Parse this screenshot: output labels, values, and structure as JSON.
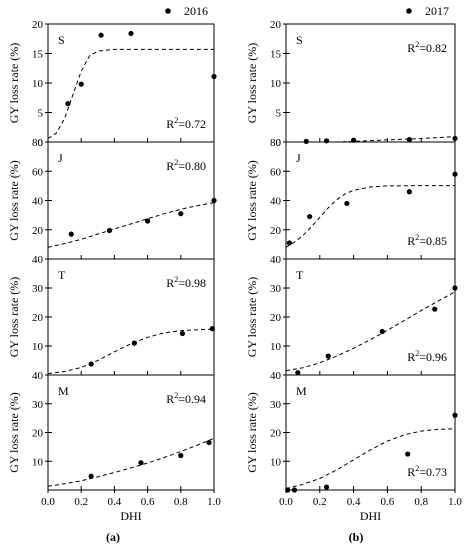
{
  "figure": {
    "left_label": "(a)",
    "right_label": "(b)"
  },
  "chart_data": [
    {
      "type": "scatter",
      "column": "a",
      "year": "2016",
      "xlabel": "DHI",
      "xticks": [
        "0.0",
        "0.2",
        "0.4",
        "0.6",
        "0.8",
        "1.0"
      ],
      "xlim": [
        0,
        1
      ],
      "panels": [
        {
          "letter": "S",
          "ylabel": "GY loss rate (%)",
          "ylim": [
            0,
            20
          ],
          "yticks": [
            0,
            5,
            10,
            15,
            20
          ],
          "r2_prefix": "R",
          "r2_value": "=0.72",
          "r2_pos": "bottom-right",
          "points": [
            [
              0.12,
              6.5
            ],
            [
              0.2,
              9.8
            ],
            [
              0.32,
              18.1
            ],
            [
              0.5,
              18.4
            ],
            [
              1.0,
              11.1
            ]
          ],
          "curve": [
            [
              0.0,
              0.6
            ],
            [
              0.05,
              1.5
            ],
            [
              0.1,
              4.0
            ],
            [
              0.15,
              8.0
            ],
            [
              0.2,
              12.0
            ],
            [
              0.25,
              14.6
            ],
            [
              0.3,
              15.4
            ],
            [
              0.4,
              15.7
            ],
            [
              0.6,
              15.7
            ],
            [
              0.8,
              15.7
            ],
            [
              1.0,
              15.7
            ]
          ]
        },
        {
          "letter": "J",
          "ylabel": "GY loss rate (%)",
          "ylim": [
            0,
            80
          ],
          "yticks": [
            20,
            40,
            60,
            80
          ],
          "r2_prefix": "R",
          "r2_value": "=0.80",
          "r2_pos": "top-right",
          "points": [
            [
              0.14,
              17
            ],
            [
              0.37,
              19.5
            ],
            [
              0.6,
              26
            ],
            [
              0.8,
              31
            ],
            [
              1.0,
              40
            ]
          ],
          "curve": [
            [
              0.0,
              8
            ],
            [
              0.1,
              10.5
            ],
            [
              0.2,
              13.5
            ],
            [
              0.3,
              17
            ],
            [
              0.4,
              20.5
            ],
            [
              0.5,
              24
            ],
            [
              0.6,
              27.5
            ],
            [
              0.7,
              31
            ],
            [
              0.8,
              34
            ],
            [
              0.9,
              36.5
            ],
            [
              1.0,
              38.5
            ]
          ]
        },
        {
          "letter": "T",
          "ylabel": "GY loss rate (%)",
          "ylim": [
            0,
            40
          ],
          "yticks": [
            10,
            20,
            30,
            40
          ],
          "r2_prefix": "R",
          "r2_value": "=0.98",
          "r2_pos": "top-right",
          "points": [
            [
              0.26,
              3.8
            ],
            [
              0.52,
              11
            ],
            [
              0.81,
              14.3
            ],
            [
              0.99,
              16
            ]
          ],
          "curve": [
            [
              0.0,
              0.5
            ],
            [
              0.1,
              1.2
            ],
            [
              0.2,
              2.6
            ],
            [
              0.3,
              5
            ],
            [
              0.4,
              8
            ],
            [
              0.5,
              10.8
            ],
            [
              0.6,
              13
            ],
            [
              0.7,
              14.5
            ],
            [
              0.8,
              15.3
            ],
            [
              0.9,
              15.6
            ],
            [
              1.0,
              15.8
            ]
          ]
        },
        {
          "letter": "M",
          "ylabel": "GY loss rate (%)",
          "ylim": [
            0,
            40
          ],
          "yticks": [
            10,
            20,
            30,
            40
          ],
          "r2_prefix": "R",
          "r2_value": "=0.94",
          "r2_pos": "top-right",
          "points": [
            [
              0.26,
              4.8
            ],
            [
              0.56,
              9.5
            ],
            [
              0.8,
              12
            ],
            [
              0.97,
              16.5
            ]
          ],
          "curve": [
            [
              0.0,
              1.3
            ],
            [
              0.1,
              2.2
            ],
            [
              0.2,
              3.2
            ],
            [
              0.3,
              4.6
            ],
            [
              0.4,
              6.1
            ],
            [
              0.5,
              7.7
            ],
            [
              0.6,
              9.4
            ],
            [
              0.7,
              11.3
            ],
            [
              0.8,
              13.4
            ],
            [
              0.9,
              15.6
            ],
            [
              1.0,
              18
            ]
          ]
        }
      ]
    },
    {
      "type": "scatter",
      "column": "b",
      "year": "2017",
      "xlabel": "DHI",
      "xticks": [
        "0.0",
        "0.2",
        "0.4",
        "0.6",
        "0.8",
        "1.0"
      ],
      "xlim": [
        0,
        1
      ],
      "panels": [
        {
          "letter": "S",
          "ylabel": "GY loss rate (%)",
          "ylim": [
            0,
            20
          ],
          "yticks": [
            0,
            5,
            10,
            15,
            20
          ],
          "r2_prefix": "R",
          "r2_value": "=0.82",
          "r2_pos": "top-right",
          "points": [
            [
              0.12,
              0.1
            ],
            [
              0.24,
              0.2
            ],
            [
              0.4,
              0.3
            ],
            [
              0.73,
              0.4
            ],
            [
              1.0,
              0.6
            ]
          ],
          "curve": [
            [
              0.0,
              -0.4
            ],
            [
              0.2,
              -0.1
            ],
            [
              0.4,
              0.1
            ],
            [
              0.6,
              0.35
            ],
            [
              0.8,
              0.6
            ],
            [
              1.0,
              0.9
            ]
          ]
        },
        {
          "letter": "J",
          "ylabel": "GY loss rate (%)",
          "ylim": [
            0,
            80
          ],
          "yticks": [
            20,
            40,
            60,
            80
          ],
          "r2_prefix": "R",
          "r2_value": "=0.85",
          "r2_pos": "bottom-right",
          "points": [
            [
              0.02,
              11
            ],
            [
              0.14,
              29
            ],
            [
              0.36,
              38
            ],
            [
              0.73,
              46
            ],
            [
              1.0,
              58
            ]
          ],
          "curve": [
            [
              0.0,
              8
            ],
            [
              0.05,
              11.5
            ],
            [
              0.1,
              16
            ],
            [
              0.15,
              22
            ],
            [
              0.2,
              28.5
            ],
            [
              0.25,
              35
            ],
            [
              0.3,
              40.5
            ],
            [
              0.35,
              44.5
            ],
            [
              0.4,
              47
            ],
            [
              0.5,
              49.3
            ],
            [
              0.6,
              50
            ],
            [
              0.8,
              50.2
            ],
            [
              1.0,
              50.2
            ]
          ]
        },
        {
          "letter": "T",
          "ylabel": "GY loss rate (%)",
          "ylim": [
            0,
            40
          ],
          "yticks": [
            10,
            20,
            30,
            40
          ],
          "r2_prefix": "R",
          "r2_value": "=0.96",
          "r2_pos": "bottom-right",
          "points": [
            [
              0.07,
              0.8
            ],
            [
              0.25,
              6.5
            ],
            [
              0.57,
              15
            ],
            [
              0.88,
              22.7
            ],
            [
              1.0,
              30
            ]
          ],
          "curve": [
            [
              0.0,
              1.5
            ],
            [
              0.1,
              2.5
            ],
            [
              0.2,
              4.2
            ],
            [
              0.3,
              6.5
            ],
            [
              0.4,
              9.2
            ],
            [
              0.5,
              12.2
            ],
            [
              0.6,
              15.4
            ],
            [
              0.7,
              18.8
            ],
            [
              0.8,
              22.2
            ],
            [
              0.9,
              25.5
            ],
            [
              1.0,
              28.7
            ]
          ]
        },
        {
          "letter": "M",
          "ylabel": "GY loss rate (%)",
          "ylim": [
            0,
            40
          ],
          "yticks": [
            10,
            20,
            30,
            40
          ],
          "r2_prefix": "R",
          "r2_value": "=0.73",
          "r2_pos": "bottom-right",
          "points": [
            [
              0.01,
              0.0
            ],
            [
              0.05,
              0.0
            ],
            [
              0.24,
              1.0
            ],
            [
              0.72,
              12.5
            ],
            [
              1.0,
              26
            ]
          ],
          "curve": [
            [
              0.0,
              0.5
            ],
            [
              0.1,
              2.0
            ],
            [
              0.2,
              4.0
            ],
            [
              0.3,
              7.0
            ],
            [
              0.4,
              10.5
            ],
            [
              0.5,
              14.0
            ],
            [
              0.6,
              17.0
            ],
            [
              0.7,
              19.2
            ],
            [
              0.8,
              20.5
            ],
            [
              0.9,
              21.1
            ],
            [
              1.0,
              21.3
            ]
          ]
        }
      ]
    }
  ]
}
